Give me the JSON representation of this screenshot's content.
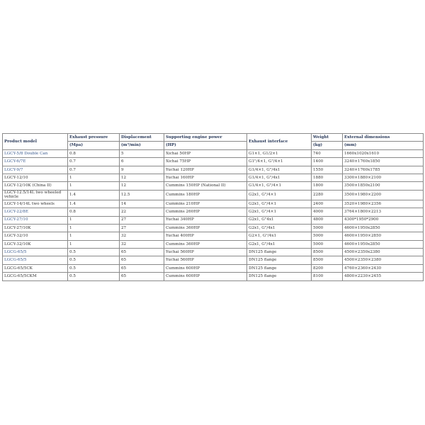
{
  "table": {
    "headers": [
      "Product model",
      "Exhaust pressure",
      "Displacement",
      "Supporting engine power",
      "Exhaust interface",
      "Weight",
      "External dimensions"
    ],
    "units": [
      "(Mpa)",
      "(m³/min)",
      "(HP)",
      "(kg)",
      "(mm)"
    ],
    "rows": [
      {
        "model": "LGCY-5/8 Double Can",
        "link": true,
        "pressure": "0.8",
        "disp": "5",
        "engine": "Xichai 50HP",
        "iface": "G1×1, G1/2×1",
        "weight": "740",
        "dims": "1660x1020x1610"
      },
      {
        "model": "LGCY-6/7E",
        "link": true,
        "pressure": "0.7",
        "disp": "6",
        "engine": "Xichai 75HP",
        "iface": "G1\"/4×1, G\"/4×1",
        "weight": "1400",
        "dims": "3240×1760x1850"
      },
      {
        "model": "LGCY-9/7",
        "link": true,
        "pressure": "0.7",
        "disp": "9",
        "engine": "Yuchai 120HP",
        "iface": "G1/4×1, G\"/4x1",
        "weight": "1550",
        "dims": "3240×1760x1785"
      },
      {
        "model": "LGCY-12/10",
        "link": false,
        "pressure": "1",
        "disp": "12",
        "engine": "Yuchai 160HP",
        "iface": "G1/4×1, G\"/4x1",
        "weight": "1880",
        "dims": "3300×1880×2100"
      },
      {
        "model": "LGCY-12/10K (China II)",
        "link": false,
        "pressure": "1",
        "disp": "12",
        "engine": "Cummins 150HP (National II)",
        "iface": "G1/4×1, G\"/4×1",
        "weight": "1800",
        "dims": "3500×1850x2100"
      },
      {
        "model": "LGCY-12.5/14L two wheeled vehicle",
        "link": false,
        "pressure": "1.4",
        "disp": "12.5",
        "engine": "Cummins 180HP",
        "iface": "G2x1, G\"/4×1",
        "weight": "2280",
        "dims": "3500×1980×2200"
      },
      {
        "model": "LGCY-14/14L two wheels",
        "link": false,
        "pressure": "1.4",
        "disp": "14",
        "engine": "Cummins 210HP",
        "iface": "G2x1, G\"/4×1",
        "weight": "2400",
        "dims": "3520×1980×2356"
      },
      {
        "model": "LGCY-22/8E",
        "link": true,
        "pressure": "0.8",
        "disp": "22",
        "engine": "Cummins 260HP",
        "iface": "G2x1, G\"/4×1",
        "weight": "4000",
        "dims": "3764×1800×2213"
      },
      {
        "model": "LGCY-27/10",
        "link": true,
        "pressure": "1",
        "disp": "27",
        "engine": "Yuchai 340HP",
        "iface": "G2x1, G\"4x1",
        "weight": "4800",
        "dims": "4300*1950*2900"
      },
      {
        "model": "LGCY-27/10K",
        "link": false,
        "pressure": "1",
        "disp": "27",
        "engine": "Cummins 360HP",
        "iface": "G2x1, G\"/4x1",
        "weight": "5000",
        "dims": "4600×1950x2850"
      },
      {
        "model": "LGCY-32/10",
        "link": false,
        "pressure": "1",
        "disp": "32",
        "engine": "Yuchai 400HP",
        "iface": "G2×1, G\"/4x1",
        "weight": "5000",
        "dims": "4600×1950×2850"
      },
      {
        "model": "LGCY-32/10K",
        "link": false,
        "pressure": "1",
        "disp": "32",
        "engine": "Cummins 360HP",
        "iface": "G2x1, G\"/4x1",
        "weight": "5000",
        "dims": "4600×1950x2850"
      },
      {
        "model": "LGCG-65/5",
        "link": true,
        "pressure": "0.5",
        "disp": "65",
        "engine": "Yuchai 560HP",
        "iface": "DN125 flange",
        "weight": "8500",
        "dims": "4500×2350x2380"
      },
      {
        "model": "LGCG-65/5",
        "link": true,
        "pressure": "0.5",
        "disp": "65",
        "engine": "Yuchai 560HP",
        "iface": "DN125 flange",
        "weight": "8500",
        "dims": "4500×2350×2380"
      },
      {
        "model": "LGCG-65/5CK",
        "link": false,
        "pressure": "0.5",
        "disp": "65",
        "engine": "Cummins 600HP",
        "iface": "DN125 flange",
        "weight": "8200",
        "dims": "4760×2360×2430"
      },
      {
        "model": "LGCG-65/5CKM",
        "link": false,
        "pressure": "0.5",
        "disp": "65",
        "engine": "Cummins 600HP",
        "iface": "DN125 flange",
        "weight": "8100",
        "dims": "4800×2230×2455"
      }
    ]
  }
}
